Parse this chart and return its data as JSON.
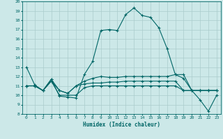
{
  "xlabel": "Humidex (Indice chaleur)",
  "ylabel": "",
  "background_color": "#cce8e8",
  "grid_color": "#aacccc",
  "line_color": "#006666",
  "xlim": [
    -0.5,
    23.5
  ],
  "ylim": [
    8,
    20
  ],
  "xticks": [
    0,
    1,
    2,
    3,
    4,
    5,
    6,
    7,
    8,
    9,
    10,
    11,
    12,
    13,
    14,
    15,
    16,
    17,
    18,
    19,
    20,
    21,
    22,
    23
  ],
  "yticks": [
    8,
    9,
    10,
    11,
    12,
    13,
    14,
    15,
    16,
    17,
    18,
    19,
    20
  ],
  "series": [
    {
      "x": [
        0,
        1,
        2,
        3,
        4,
        5,
        6,
        7,
        8,
        9,
        10,
        11,
        12,
        13,
        14,
        15,
        16,
        17,
        18,
        19,
        20,
        21,
        22,
        23
      ],
      "y": [
        13,
        11.1,
        10.5,
        11.7,
        9.9,
        9.8,
        9.7,
        12.2,
        13.6,
        16.9,
        17.0,
        16.9,
        18.6,
        19.3,
        18.5,
        18.3,
        17.2,
        15.0,
        12.2,
        11.8,
        10.5,
        9.5,
        8.3,
        10.0
      ]
    },
    {
      "x": [
        0,
        1,
        2,
        3,
        4,
        5,
        6,
        7,
        8,
        9,
        10,
        11,
        12,
        13,
        14,
        15,
        16,
        17,
        18,
        19,
        20,
        21,
        22,
        23
      ],
      "y": [
        11.0,
        11.0,
        10.5,
        11.5,
        10.5,
        10.2,
        11.0,
        11.2,
        11.3,
        11.3,
        11.4,
        11.4,
        11.5,
        11.5,
        11.5,
        11.5,
        11.5,
        11.5,
        11.5,
        10.5,
        10.5,
        10.5,
        10.5,
        10.5
      ]
    },
    {
      "x": [
        0,
        1,
        2,
        3,
        4,
        5,
        6,
        7,
        8,
        9,
        10,
        11,
        12,
        13,
        14,
        15,
        16,
        17,
        18,
        19,
        20,
        21,
        22,
        23
      ],
      "y": [
        11.0,
        11.0,
        10.5,
        11.5,
        10.0,
        10.0,
        10.0,
        10.8,
        11.0,
        11.0,
        11.0,
        11.0,
        11.0,
        11.0,
        11.0,
        11.0,
        11.0,
        11.0,
        11.0,
        10.5,
        10.5,
        10.5,
        10.5,
        10.5
      ]
    },
    {
      "x": [
        0,
        1,
        2,
        3,
        4,
        5,
        6,
        7,
        8,
        9,
        10,
        11,
        12,
        13,
        14,
        15,
        16,
        17,
        18,
        19,
        20,
        21,
        22,
        23
      ],
      "y": [
        11.0,
        11.0,
        10.5,
        11.7,
        10.5,
        10.2,
        11.0,
        11.5,
        11.8,
        12.0,
        11.9,
        11.9,
        12.0,
        12.0,
        12.0,
        12.0,
        12.0,
        12.0,
        12.2,
        12.2,
        10.5,
        10.5,
        10.5,
        10.5
      ]
    }
  ]
}
